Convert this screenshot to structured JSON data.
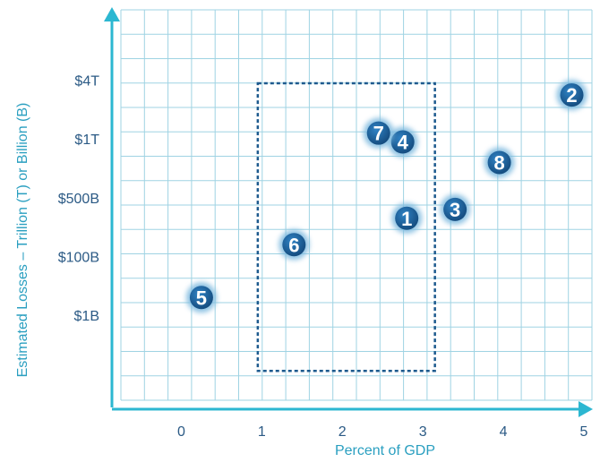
{
  "chart_data": {
    "type": "scatter",
    "xlabel": "Percent of GDP",
    "ylabel": "Estimated Losses – Trillion (T) or Billion (B)",
    "x_ticks": [
      {
        "label": "0",
        "value": 0
      },
      {
        "label": "1",
        "value": 1
      },
      {
        "label": "2",
        "value": 2
      },
      {
        "label": "3",
        "value": 3
      },
      {
        "label": "4",
        "value": 4
      },
      {
        "label": "5",
        "value": 5
      }
    ],
    "y_ticks": [
      {
        "label": "$4T",
        "level": 5
      },
      {
        "label": "$1T",
        "level": 4
      },
      {
        "label": "$500B",
        "level": 3
      },
      {
        "label": "$100B",
        "level": 2
      },
      {
        "label": "$1B",
        "level": 1
      }
    ],
    "xlim": [
      -0.75,
      5.1
    ],
    "ylim": [
      -0.45,
      6.2
    ],
    "grid": true,
    "points": [
      {
        "label": "1",
        "x": 2.8,
        "y": 2.65
      },
      {
        "label": "2",
        "x": 4.85,
        "y": 4.75
      },
      {
        "label": "3",
        "x": 3.4,
        "y": 2.8
      },
      {
        "label": "4",
        "x": 2.75,
        "y": 3.95
      },
      {
        "label": "5",
        "x": 0.25,
        "y": 1.3
      },
      {
        "label": "6",
        "x": 1.4,
        "y": 2.2
      },
      {
        "label": "7",
        "x": 2.45,
        "y": 4.1
      },
      {
        "label": "8",
        "x": 3.95,
        "y": 3.6
      }
    ],
    "highlight_region": {
      "x": [
        0.95,
        3.15
      ],
      "y": [
        0.05,
        4.95
      ]
    },
    "colors": {
      "grid": "#9fd3e3",
      "axis": "#2cb7d1",
      "marker": "#1b5f9a",
      "tick_text": "#2b5a85",
      "title_text": "#2a9fc0",
      "region": "#1d5a8e"
    }
  }
}
